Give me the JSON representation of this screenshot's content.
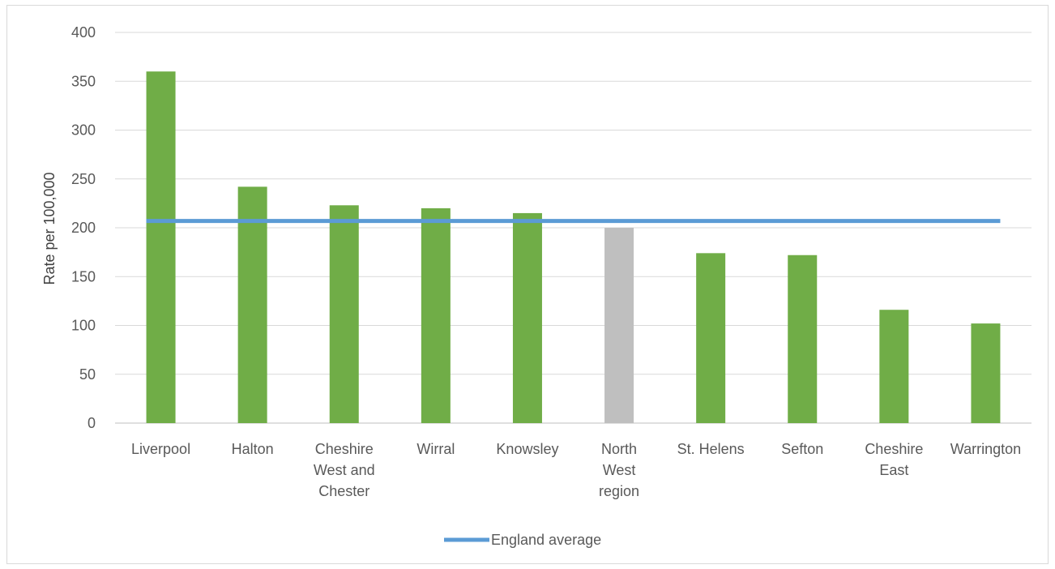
{
  "chart_data": {
    "type": "bar",
    "title": "",
    "xlabel": "",
    "ylabel": "Rate per 100,000",
    "ylim": [
      0,
      400
    ],
    "yticks": [
      0,
      50,
      100,
      150,
      200,
      250,
      300,
      350,
      400
    ],
    "categories": [
      [
        "Liverpool"
      ],
      [
        "Halton"
      ],
      [
        "Cheshire",
        "West and",
        "Chester"
      ],
      [
        "Wirral"
      ],
      [
        "Knowsley"
      ],
      [
        "North",
        "West",
        "region"
      ],
      [
        "St. Helens"
      ],
      [
        "Sefton"
      ],
      [
        "Cheshire",
        "East"
      ],
      [
        "Warrington"
      ]
    ],
    "values": [
      360,
      242,
      223,
      220,
      215,
      200,
      174,
      172,
      116,
      102
    ],
    "bar_colors": [
      "#70ad47",
      "#70ad47",
      "#70ad47",
      "#70ad47",
      "#70ad47",
      "#bfbfbf",
      "#70ad47",
      "#70ad47",
      "#70ad47",
      "#70ad47"
    ],
    "reference_line": {
      "name": "England average",
      "value": 207,
      "color": "#5b9bd5"
    },
    "grid": true,
    "legend_position": "bottom"
  }
}
